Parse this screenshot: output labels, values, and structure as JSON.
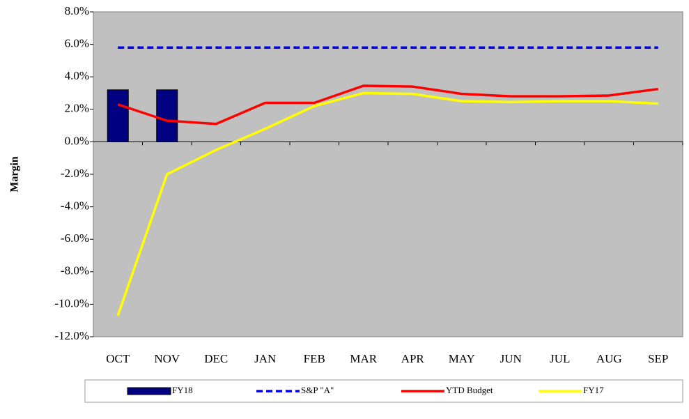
{
  "chart_data": {
    "type": "line",
    "y_label": "Margin",
    "categories": [
      "OCT",
      "NOV",
      "DEC",
      "JAN",
      "FEB",
      "MAR",
      "APR",
      "MAY",
      "JUN",
      "JUL",
      "AUG",
      "SEP"
    ],
    "ylim": [
      -12,
      8
    ],
    "yticks": [
      {
        "value": -12,
        "label": "-12.0%"
      },
      {
        "value": -10,
        "label": "-10.0%"
      },
      {
        "value": -8,
        "label": "-8.0%"
      },
      {
        "value": -6,
        "label": "-6.0%"
      },
      {
        "value": -4,
        "label": "-4.0%"
      },
      {
        "value": -2,
        "label": "-2.0%"
      },
      {
        "value": 0,
        "label": "0.0%"
      },
      {
        "value": 2,
        "label": "2.0%"
      },
      {
        "value": 4,
        "label": "4.0%"
      },
      {
        "value": 6,
        "label": "6.0%"
      },
      {
        "value": 8,
        "label": "8.0%"
      }
    ],
    "series": [
      {
        "name": "FY18",
        "type": "bar",
        "color": "#000080",
        "values": [
          3.2,
          3.2,
          null,
          null,
          null,
          null,
          null,
          null,
          null,
          null,
          null,
          null
        ]
      },
      {
        "name": "S&P \"A\"",
        "type": "line",
        "dashed": true,
        "color": "#0000ff",
        "values": [
          5.8,
          5.8,
          5.8,
          5.8,
          5.8,
          5.8,
          5.8,
          5.8,
          5.8,
          5.8,
          5.8,
          5.8
        ]
      },
      {
        "name": "YTD Budget",
        "type": "line",
        "color": "#ff0000",
        "values": [
          2.3,
          1.3,
          1.1,
          2.4,
          2.4,
          3.45,
          3.4,
          2.95,
          2.8,
          2.8,
          2.85,
          3.25
        ]
      },
      {
        "name": "FY17",
        "type": "line",
        "color": "#ffff00",
        "values": [
          -10.7,
          -2.0,
          -0.5,
          0.8,
          2.2,
          3.0,
          2.95,
          2.5,
          2.45,
          2.5,
          2.5,
          2.35
        ]
      }
    ]
  }
}
